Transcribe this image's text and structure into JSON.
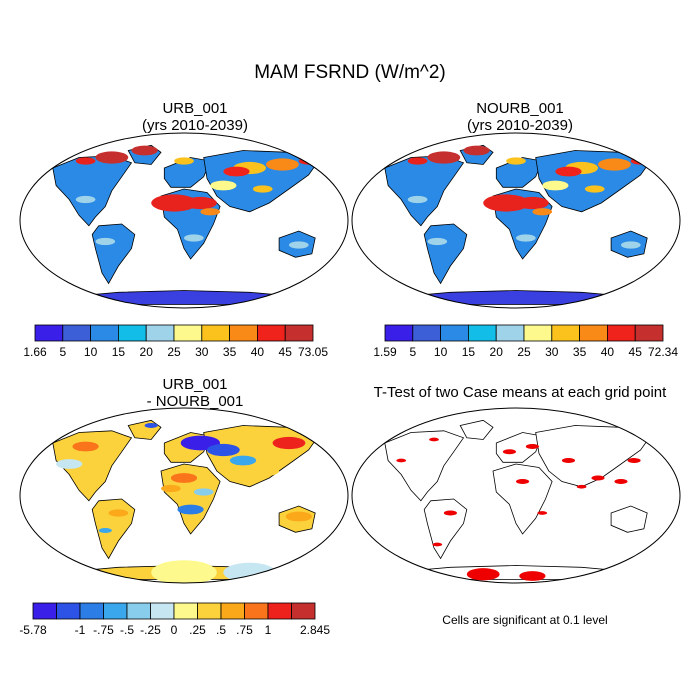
{
  "figure": {
    "title": "MAM FSRND (W/m^2)"
  },
  "panels": [
    {
      "id": "urb",
      "title_line1": "URB_001",
      "title_line2": "(yrs 2010-2039)"
    },
    {
      "id": "nourb",
      "title_line1": "NOURB_001",
      "title_line2": "(yrs 2010-2039)"
    },
    {
      "id": "diff",
      "title_line1": "URB_001",
      "title_line2": "- NOURB_001"
    },
    {
      "id": "ttest",
      "title_line1": "T-Test of two Case means at each grid point",
      "title_line2": ""
    }
  ],
  "colorbars": {
    "urb": {
      "colors": [
        "#3a1fe8",
        "#3c5fd8",
        "#2a8ae6",
        "#12bde8",
        "#9fd3ea",
        "#fdf98c",
        "#fbc11c",
        "#f98a18",
        "#f0231c",
        "#c5302f"
      ],
      "labels": [
        "1.66",
        "5",
        "10",
        "15",
        "20",
        "25",
        "30",
        "35",
        "40",
        "45",
        "73.05"
      ]
    },
    "nourb": {
      "colors": [
        "#3a1fe8",
        "#3c5fd8",
        "#2a8ae6",
        "#12bde8",
        "#9fd3ea",
        "#fdf98c",
        "#fbc11c",
        "#f98a18",
        "#f0231c",
        "#c5302f"
      ],
      "labels": [
        "1.59",
        "5",
        "10",
        "15",
        "20",
        "25",
        "30",
        "35",
        "40",
        "45",
        "72.34"
      ]
    },
    "diff": {
      "colors": [
        "#3a1fe8",
        "#2c52e6",
        "#2c7ee6",
        "#3aa6ec",
        "#88cdec",
        "#c6e7f2",
        "#fdf98c",
        "#fbd23c",
        "#fba81a",
        "#f9741a",
        "#ee221c",
        "#c5302f"
      ],
      "labels": [
        "-5.78",
        "",
        "-1",
        "-.75",
        "-.5",
        "-.25",
        "0",
        ".25",
        ".5",
        ".75",
        "1",
        "",
        "2.845"
      ]
    }
  },
  "ttest_note": "Cells are significant at 0.1 level"
}
